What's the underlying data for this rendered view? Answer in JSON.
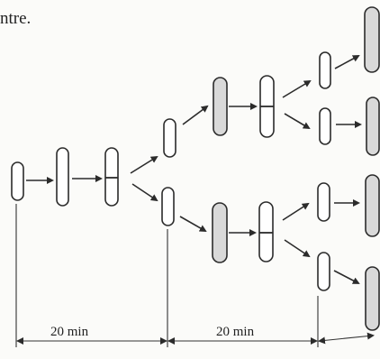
{
  "caption_fragment": "ntre.",
  "interval_labels": [
    "20 min",
    "20 min"
  ],
  "colors": {
    "line": "#2b2b2b",
    "cell_fill": "#ffffff",
    "shade": "#d9d9d9",
    "background": "#fbfbf9"
  }
}
